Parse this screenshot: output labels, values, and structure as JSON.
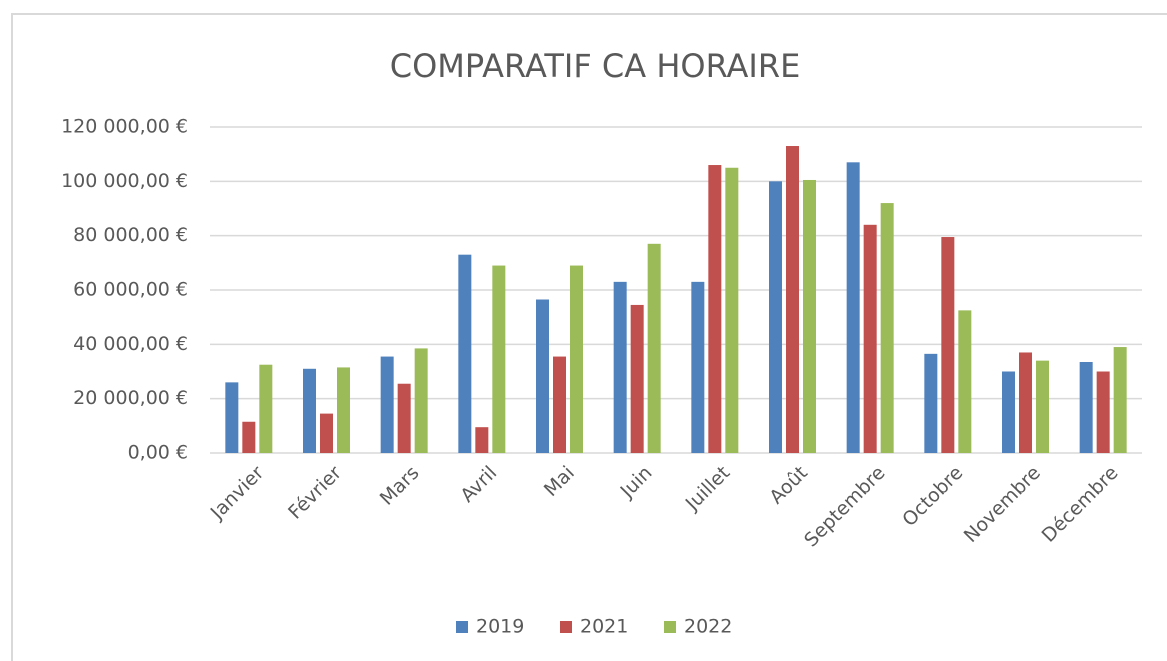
{
  "chart_data": {
    "type": "bar",
    "title": "COMPARATIF CA HORAIRE",
    "categories": [
      "Janvier",
      "Février",
      "Mars",
      "Avril",
      "Mai",
      "Juin",
      "Juillet",
      "Août",
      "Septembre",
      "Octobre",
      "Novembre",
      "Décembre"
    ],
    "series": [
      {
        "name": "2019",
        "color": "#4f81bd",
        "values": [
          26000,
          31000,
          35500,
          73000,
          56500,
          63000,
          63000,
          100000,
          107000,
          36500,
          30000,
          33500
        ]
      },
      {
        "name": "2021",
        "color": "#c0504d",
        "values": [
          11500,
          14500,
          25500,
          9500,
          35500,
          54500,
          106000,
          113000,
          84000,
          79500,
          37000,
          30000
        ]
      },
      {
        "name": "2022",
        "color": "#9bbb59",
        "values": [
          32500,
          31500,
          38500,
          69000,
          69000,
          77000,
          105000,
          100500,
          92000,
          52500,
          34000,
          39000
        ]
      }
    ],
    "ylim": [
      0,
      120000
    ],
    "yticks": [
      {
        "value": 0,
        "label": "0,00 €"
      },
      {
        "value": 20000,
        "label": "20 000,00 €"
      },
      {
        "value": 40000,
        "label": "40 000,00 €"
      },
      {
        "value": 60000,
        "label": "60 000,00 €"
      },
      {
        "value": 80000,
        "label": "80 000,00 €"
      },
      {
        "value": 100000,
        "label": "100 000,00 €"
      },
      {
        "value": 120000,
        "label": "120 000,00 €"
      }
    ],
    "grid": true,
    "legend": "bottom"
  }
}
